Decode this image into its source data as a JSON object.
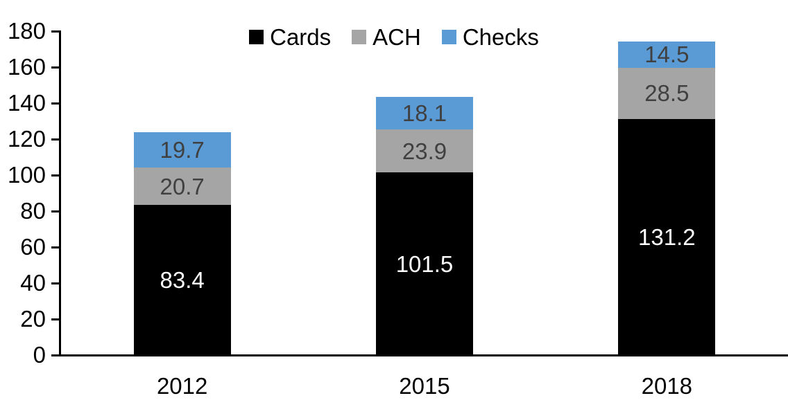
{
  "chart_data": {
    "type": "bar",
    "stacked": true,
    "title": "",
    "xlabel": "",
    "ylabel": "",
    "categories": [
      "2012",
      "2015",
      "2018"
    ],
    "series": [
      {
        "name": "Cards",
        "color": "#000000",
        "label_color": "#ffffff",
        "values": [
          83.4,
          101.5,
          131.2
        ]
      },
      {
        "name": "ACH",
        "color": "#a5a5a5",
        "label_color": "#404040",
        "values": [
          20.7,
          23.9,
          28.5
        ]
      },
      {
        "name": "Checks",
        "color": "#5b9bd5",
        "label_color": "#404040",
        "values": [
          19.7,
          18.1,
          14.5
        ]
      }
    ],
    "totals": [
      123.8,
      143.5,
      174.2
    ],
    "ylim": [
      0,
      180
    ],
    "ytick_step": 20,
    "yticklabels": [
      "0",
      "20",
      "40",
      "60",
      "80",
      "100",
      "120",
      "140",
      "160",
      "180"
    ],
    "legend_position": "top-center",
    "legend_entries": [
      "Cards",
      "ACH",
      "Checks"
    ],
    "grid": false,
    "axis_color": "#000000",
    "background_color": "#ffffff",
    "data_labels_shown": true
  }
}
